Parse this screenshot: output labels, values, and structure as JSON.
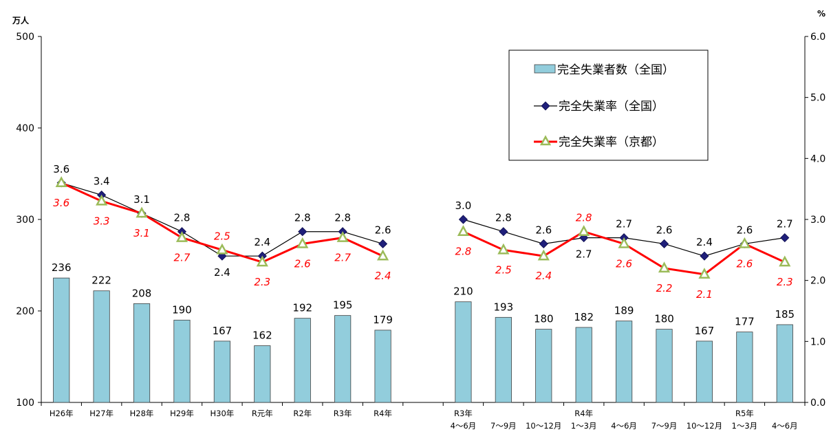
{
  "chart_data": {
    "type": "bar",
    "left_axis_unit": "万人",
    "right_axis_unit": "%",
    "left_axis": {
      "min": 100,
      "max": 500,
      "ticks": [
        "100",
        "200",
        "300",
        "400",
        "500"
      ]
    },
    "right_axis": {
      "min": 0,
      "max": 6,
      "ticks": [
        "0.0",
        "1.0",
        "2.0",
        "3.0",
        "4.0",
        "5.0",
        "6.0"
      ]
    },
    "legend_position": "top-right",
    "categories": [
      {
        "line1": "H26年",
        "line2": ""
      },
      {
        "line1": "H27年",
        "line2": ""
      },
      {
        "line1": "H28年",
        "line2": ""
      },
      {
        "line1": "H29年",
        "line2": ""
      },
      {
        "line1": "H30年",
        "line2": ""
      },
      {
        "line1": "R元年",
        "line2": ""
      },
      {
        "line1": "R2年",
        "line2": ""
      },
      {
        "line1": "R3年",
        "line2": ""
      },
      {
        "line1": "R4年",
        "line2": ""
      },
      {
        "line1": "",
        "line2": ""
      },
      {
        "line1": "R3年",
        "line2": "4～6月"
      },
      {
        "line1": "",
        "line2": "7～9月"
      },
      {
        "line1": "",
        "line2": "10～12月"
      },
      {
        "line1": "R4年",
        "line2": "1～3月"
      },
      {
        "line1": "",
        "line2": "4～6月"
      },
      {
        "line1": "",
        "line2": "7～9月"
      },
      {
        "line1": "",
        "line2": "10～12月"
      },
      {
        "line1": "R5年",
        "line2": "1～3月"
      },
      {
        "line1": "",
        "line2": "4～6月"
      }
    ],
    "series": [
      {
        "name": "完全失業者数（全国）",
        "type": "bar",
        "axis": "left",
        "values": [
          236,
          222,
          208,
          190,
          167,
          162,
          192,
          195,
          179,
          null,
          210,
          193,
          180,
          182,
          189,
          180,
          167,
          177,
          185
        ]
      },
      {
        "name": "完全失業率（全国）",
        "type": "line",
        "axis": "right",
        "values": [
          3.6,
          3.4,
          3.1,
          2.8,
          2.4,
          2.4,
          2.8,
          2.8,
          2.6,
          null,
          3.0,
          2.8,
          2.6,
          2.7,
          2.7,
          2.6,
          2.4,
          2.6,
          2.7
        ]
      },
      {
        "name": "完全失業率（京都）",
        "type": "line",
        "axis": "right",
        "values": [
          3.6,
          3.3,
          3.1,
          2.7,
          2.5,
          2.3,
          2.6,
          2.7,
          2.4,
          null,
          2.8,
          2.5,
          2.4,
          2.8,
          2.6,
          2.2,
          2.1,
          2.6,
          2.3
        ]
      }
    ],
    "series_colors": {
      "bar": "#92cddc",
      "national": "#1f1f7a",
      "kyoto_line": "#ff0000",
      "kyoto_marker": "#9bbb59"
    }
  }
}
